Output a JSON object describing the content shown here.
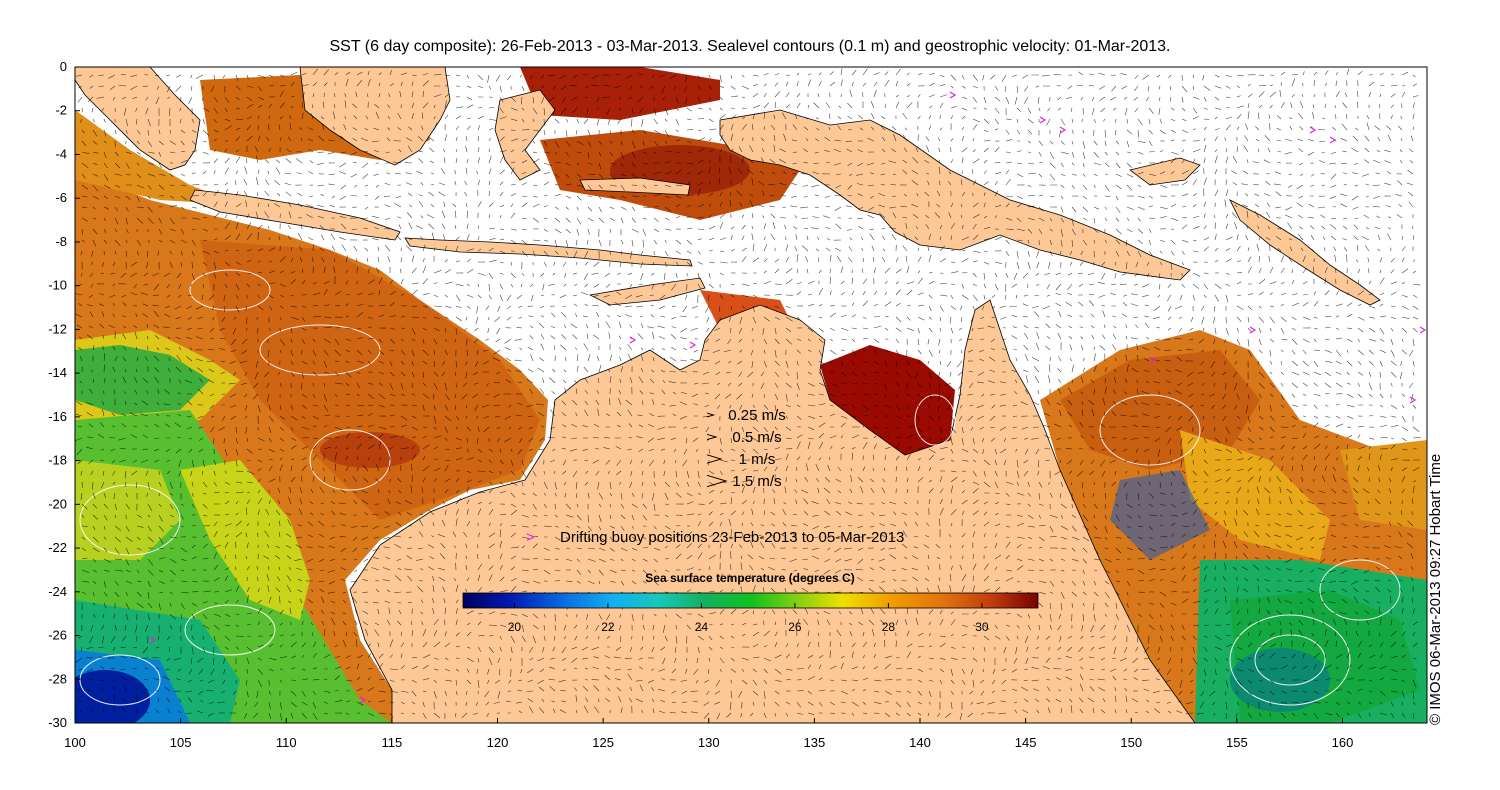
{
  "title": "SST (6 day composite): 26-Feb-2013 - 03-Mar-2013. Sealevel contours (0.1 m) and geostrophic velocity: 01-Mar-2013.",
  "x_axis": {
    "min": 100,
    "max": 164,
    "ticks": [
      "100",
      "105",
      "110",
      "115",
      "120",
      "125",
      "130",
      "135",
      "140",
      "145",
      "150",
      "155",
      "160"
    ]
  },
  "y_axis": {
    "min": -30,
    "max": 0,
    "ticks": [
      "0",
      "-2",
      "-4",
      "-6",
      "-8",
      "-10",
      "-12",
      "-14",
      "-16",
      "-18",
      "-20",
      "-22",
      "-24",
      "-26",
      "-28",
      "-30"
    ]
  },
  "velocity_legend": [
    {
      "label": "0.25 m/s",
      "speed": 0.25
    },
    {
      "label": "0.5 m/s",
      "speed": 0.5
    },
    {
      "label": "1 m/s",
      "speed": 1
    },
    {
      "label": "1.5 m/s",
      "speed": 1.5
    }
  ],
  "buoy_legend": {
    "symbol": ">",
    "label": "Drifting buoy positions 23-Feb-2013 to 05-Mar-2013",
    "color": "#e020e0"
  },
  "colorbar": {
    "title": "Sea surface temperature (degrees C)",
    "min": 18.9,
    "max": 31.2,
    "ticks": [
      "20",
      "22",
      "24",
      "26",
      "28",
      "30"
    ],
    "colors": [
      "#00007f",
      "#0030d0",
      "#0a8ae8",
      "#1ac8d8",
      "#19b070",
      "#15c020",
      "#70d010",
      "#e8e000",
      "#f0a000",
      "#e07010",
      "#c04010",
      "#800000"
    ]
  },
  "copyright": "© IMOS 06-Mar-2013 09:27 Hobart Time",
  "colors": {
    "land": "#fdc896",
    "no_data": "#ffffff",
    "vector": "#000000",
    "contour": "#ffffff"
  }
}
